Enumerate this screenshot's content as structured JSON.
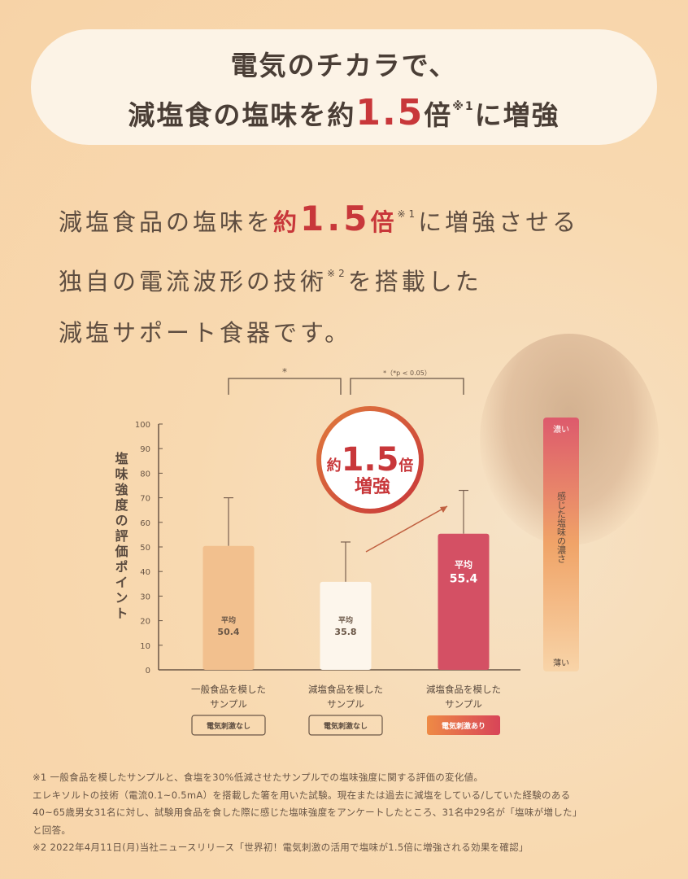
{
  "header": {
    "line1": "電気のチカラで、",
    "line2_a": "減塩食の塩味を約",
    "line2_num": "1.5",
    "line2_b": "倍",
    "line2_sup": "※1",
    "line2_c": "に増強"
  },
  "lead": {
    "l1_a": "減塩食品の塩味を",
    "l1_yaku": "約",
    "l1_num": "1.5",
    "l1_bai": "倍",
    "l1_sup": "※1",
    "l1_b": "に増強させる",
    "l2_a": "独自の電流波形の技術",
    "l2_sup": "※2",
    "l2_b": "を搭載した",
    "l3": "減塩サポート食器です。"
  },
  "badge": {
    "yaku": "約",
    "num": "1.5",
    "bai": "倍",
    "label": "増強"
  },
  "scale": {
    "top": "濃い",
    "label": "感じた塩味の濃さ",
    "bottom": "薄い"
  },
  "chart_data": {
    "type": "bar",
    "ylabel": "塩味強度の評価ポイント",
    "ylim": [
      0,
      100
    ],
    "yticks": [
      0,
      10,
      20,
      30,
      40,
      50,
      60,
      70,
      80,
      90,
      100
    ],
    "categories": [
      "一般食品を模した\nサンプル",
      "減塩食品を模した\nサンプル",
      "減塩食品を模した\nサンプル"
    ],
    "category_lines": [
      [
        "一般食品を模した",
        "サンプル"
      ],
      [
        "減塩食品を模した",
        "サンプル"
      ],
      [
        "減塩食品を模した",
        "サンプル"
      ]
    ],
    "tags": [
      "電気刺激なし",
      "電気刺激なし",
      "電気刺激あり"
    ],
    "values": [
      50.4,
      35.8,
      55.4
    ],
    "error_upper": [
      70,
      52,
      73
    ],
    "value_prefix": "平均",
    "colors": [
      "#f2c08e",
      "#fdf6ec",
      "#d45064"
    ],
    "significance": [
      {
        "label": "*",
        "from": 0,
        "to": 1
      },
      {
        "label": "*（*p < 0.05）",
        "from": 1,
        "to": 2
      }
    ]
  },
  "footnotes": [
    "※1 一般食品を模したサンプルと、食塩を30%低減させたサンプルでの塩味強度に関する評価の変化値。",
    "エレキソルトの技術（電流0.1~0.5mA）を搭載した箸を用いた試験。現在または過去に減塩をしている/していた経験のある",
    "40~65歳男女31名に対し、試験用食品を食した際に感じた塩味強度をアンケートしたところ、31名中29名が「塩味が増した」",
    "と回答。",
    "※2 2022年4月11日(月)当社ニュースリリース「世界初！電気刺激の活用で塩味が1.5倍に増強される効果を確認」"
  ]
}
